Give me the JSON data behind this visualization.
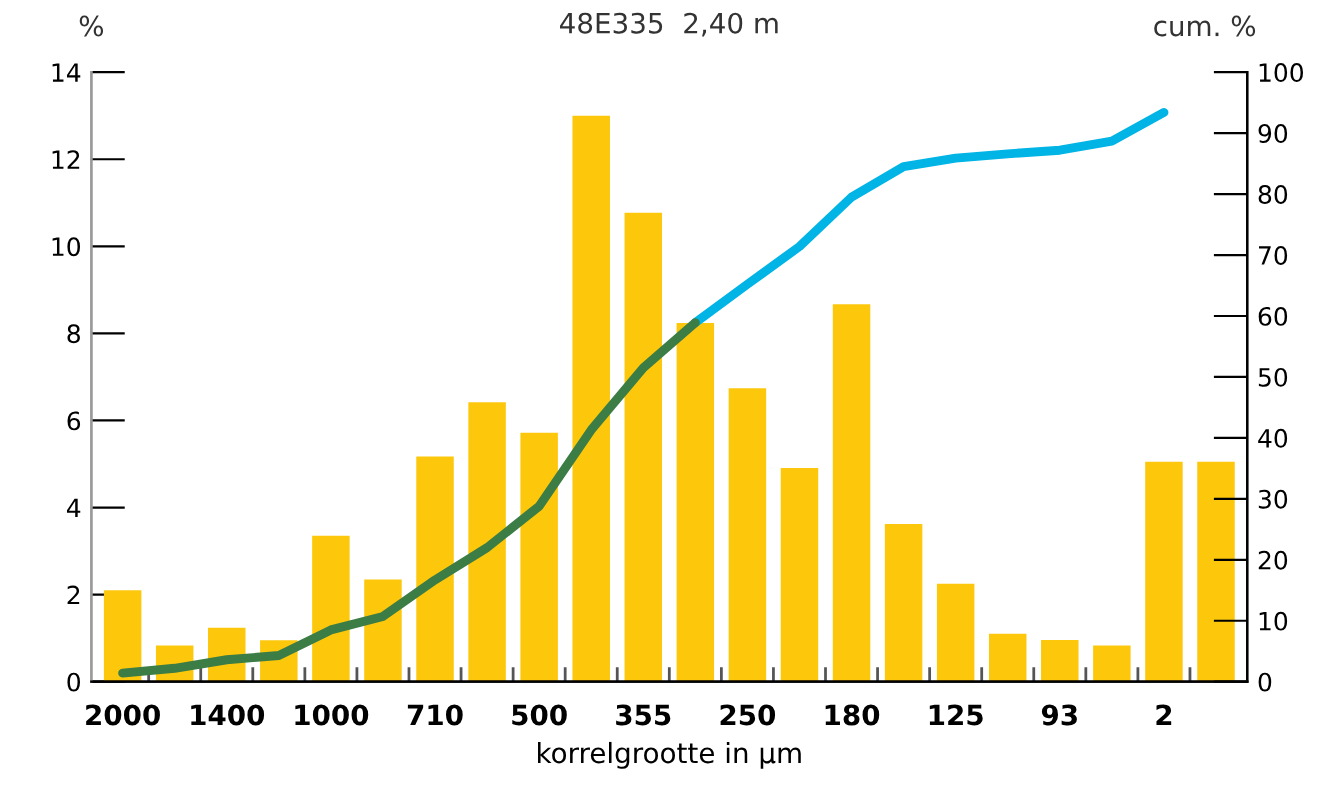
{
  "chart_data": {
    "type": "bar",
    "title": "48E335  2,40 m",
    "xlabel": "korrelgrootte in µm",
    "ylabel": "%",
    "y2label": "cum. %",
    "categories": [
      "2000",
      null,
      "1400",
      null,
      "1000",
      null,
      "710",
      null,
      "500",
      null,
      "355",
      null,
      "250",
      null,
      "180",
      null,
      "125",
      null,
      "93",
      null,
      "2",
      null
    ],
    "series": [
      {
        "color": "#fdc70c",
        "values": [
          2.1,
          0.83,
          1.24,
          0.95,
          3.35,
          2.35,
          5.17,
          6.42,
          5.72,
          13.0,
          10.77,
          8.24,
          6.74,
          4.91,
          8.67,
          3.62,
          2.25,
          1.1,
          0.96,
          0.83,
          5.05,
          5.05
        ]
      },
      {
        "type": "line",
        "axis": "y2",
        "color": "#00b4e6",
        "values": [
          null,
          null,
          null,
          null,
          null,
          null,
          null,
          null,
          null,
          null,
          null,
          58.9,
          65.2,
          71.4,
          79.5,
          84.5,
          85.9,
          86.6,
          87.2,
          88.7,
          93.4,
          null
        ]
      },
      {
        "type": "line",
        "axis": "y2",
        "color": "#3b7d45",
        "values": [
          1.4,
          2.2,
          3.6,
          4.3,
          8.5,
          10.7,
          16.7,
          22,
          28.8,
          41.3,
          51.5,
          58.9,
          null,
          null,
          null,
          null,
          null,
          null,
          null,
          null,
          null,
          null
        ]
      }
    ],
    "ylim": [
      0,
      14
    ],
    "yticks": [
      0,
      2,
      4,
      6,
      8,
      10,
      12,
      14
    ],
    "y2lim": [
      0,
      100
    ],
    "y2ticks": [
      0,
      10,
      20,
      30,
      40,
      50,
      60,
      70,
      80,
      90,
      100
    ],
    "grid": false,
    "legend": false
  }
}
